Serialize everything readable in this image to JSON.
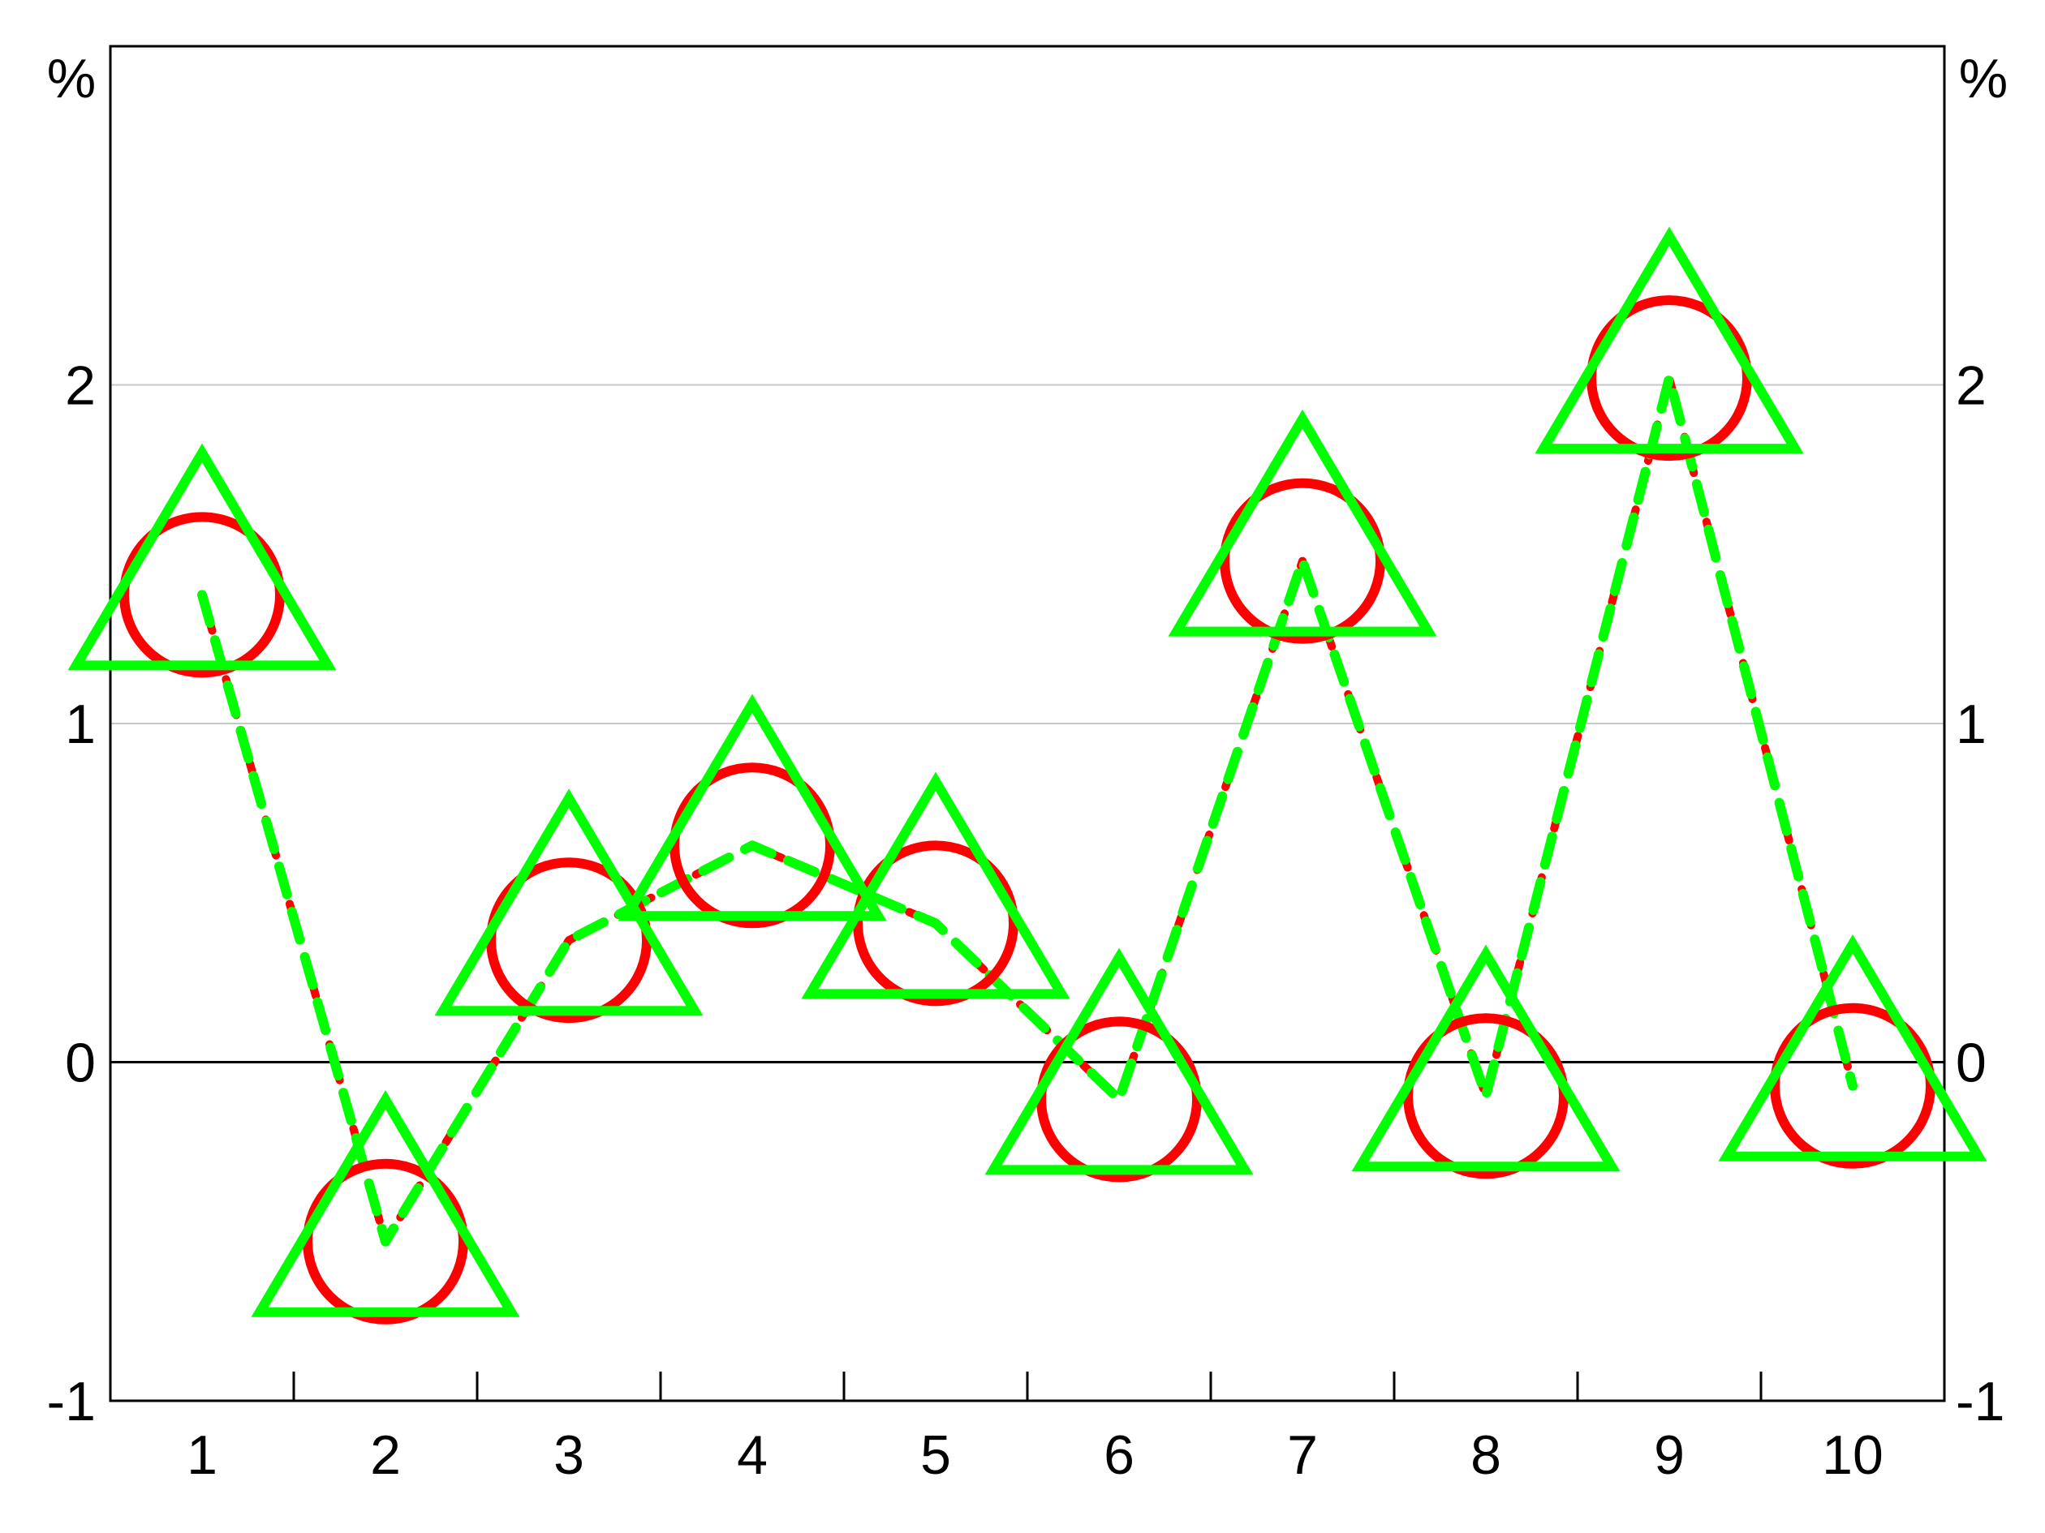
{
  "chart_data": {
    "type": "line",
    "title": "",
    "xlabel": "",
    "ylabel": "",
    "y_unit_left": "%",
    "y_unit_right": "%",
    "categories": [
      "1",
      "2",
      "3",
      "4",
      "5",
      "6",
      "7",
      "8",
      "9",
      "10"
    ],
    "ylim": [
      -1,
      3
    ],
    "yticks": [
      -1,
      0,
      1,
      2
    ],
    "grid": true,
    "legend": "none",
    "series": [
      {
        "values": [
          1.38,
          -0.53,
          0.36,
          0.64,
          0.41,
          -0.11,
          1.48,
          -0.1,
          2.02,
          -0.07
        ],
        "color": "#ff0000",
        "marker": "circle",
        "line_style": "dotted"
      },
      {
        "values": [
          1.38,
          -0.53,
          0.36,
          0.64,
          0.41,
          -0.11,
          1.48,
          -0.1,
          2.02,
          -0.07
        ],
        "color": "#00ff00",
        "marker": "triangle",
        "line_style": "dashed"
      }
    ]
  }
}
